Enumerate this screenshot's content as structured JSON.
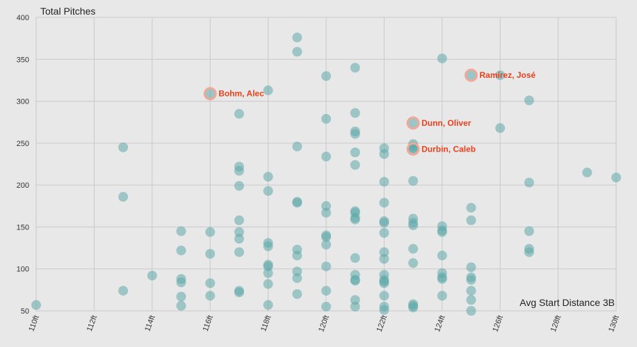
{
  "chart_data": {
    "type": "scatter",
    "ylabel": "Total Pitches",
    "xlabel": "Avg Start Distance 3B",
    "xlim": [
      110,
      130
    ],
    "ylim": [
      50,
      400
    ],
    "x_ticks": [
      110,
      112,
      114,
      116,
      118,
      120,
      122,
      124,
      126,
      128,
      130
    ],
    "x_tick_labels": [
      "110ft",
      "112ft",
      "114ft",
      "116ft",
      "118ft",
      "120ft",
      "122ft",
      "124ft",
      "126ft",
      "128ft",
      "130ft"
    ],
    "y_ticks": [
      50,
      100,
      150,
      200,
      250,
      300,
      350,
      400
    ],
    "y_tick_labels": [
      "50",
      "100",
      "150",
      "200",
      "250",
      "300",
      "350",
      "400"
    ],
    "points": [
      [
        110,
        57
      ],
      [
        113,
        245
      ],
      [
        113,
        186
      ],
      [
        113,
        74
      ],
      [
        114,
        92
      ],
      [
        115,
        145
      ],
      [
        115,
        122
      ],
      [
        115,
        88
      ],
      [
        115,
        84
      ],
      [
        115,
        67
      ],
      [
        115,
        56
      ],
      [
        116,
        144
      ],
      [
        116,
        118
      ],
      [
        116,
        83
      ],
      [
        116,
        68
      ],
      [
        117,
        285
      ],
      [
        117,
        222
      ],
      [
        117,
        217
      ],
      [
        117,
        199
      ],
      [
        117,
        158
      ],
      [
        117,
        144
      ],
      [
        117,
        136
      ],
      [
        117,
        120
      ],
      [
        117,
        74
      ],
      [
        117,
        72
      ],
      [
        118,
        313
      ],
      [
        118,
        210
      ],
      [
        118,
        193
      ],
      [
        118,
        131
      ],
      [
        118,
        127
      ],
      [
        118,
        105
      ],
      [
        118,
        103
      ],
      [
        118,
        95
      ],
      [
        118,
        82
      ],
      [
        118,
        57
      ],
      [
        119,
        376
      ],
      [
        119,
        359
      ],
      [
        119,
        246
      ],
      [
        119,
        180
      ],
      [
        119,
        179
      ],
      [
        119,
        123
      ],
      [
        119,
        116
      ],
      [
        119,
        97
      ],
      [
        119,
        89
      ],
      [
        119,
        70
      ],
      [
        120,
        330
      ],
      [
        120,
        279
      ],
      [
        120,
        234
      ],
      [
        120,
        175
      ],
      [
        120,
        167
      ],
      [
        120,
        140
      ],
      [
        120,
        138
      ],
      [
        120,
        129
      ],
      [
        120,
        103
      ],
      [
        120,
        74
      ],
      [
        120,
        55
      ],
      [
        121,
        340
      ],
      [
        121,
        286
      ],
      [
        121,
        264
      ],
      [
        121,
        261
      ],
      [
        121,
        239
      ],
      [
        121,
        224
      ],
      [
        121,
        169
      ],
      [
        121,
        167
      ],
      [
        121,
        161
      ],
      [
        121,
        159
      ],
      [
        121,
        113
      ],
      [
        121,
        93
      ],
      [
        121,
        87
      ],
      [
        121,
        86
      ],
      [
        121,
        63
      ],
      [
        121,
        55
      ],
      [
        122,
        244
      ],
      [
        122,
        237
      ],
      [
        122,
        204
      ],
      [
        122,
        179
      ],
      [
        122,
        157
      ],
      [
        122,
        155
      ],
      [
        122,
        143
      ],
      [
        122,
        120
      ],
      [
        122,
        112
      ],
      [
        122,
        93
      ],
      [
        122,
        87
      ],
      [
        122,
        85
      ],
      [
        122,
        83
      ],
      [
        122,
        68
      ],
      [
        122,
        55
      ],
      [
        122,
        51
      ],
      [
        123,
        249
      ],
      [
        123,
        246
      ],
      [
        123,
        244
      ],
      [
        123,
        205
      ],
      [
        123,
        160
      ],
      [
        123,
        155
      ],
      [
        123,
        152
      ],
      [
        123,
        124
      ],
      [
        123,
        107
      ],
      [
        123,
        58
      ],
      [
        123,
        56
      ],
      [
        123,
        54
      ],
      [
        124,
        351
      ],
      [
        124,
        151
      ],
      [
        124,
        146
      ],
      [
        124,
        144
      ],
      [
        124,
        116
      ],
      [
        124,
        95
      ],
      [
        124,
        90
      ],
      [
        124,
        88
      ],
      [
        124,
        68
      ],
      [
        125,
        173
      ],
      [
        125,
        158
      ],
      [
        125,
        102
      ],
      [
        125,
        90
      ],
      [
        125,
        87
      ],
      [
        125,
        74
      ],
      [
        125,
        63
      ],
      [
        125,
        50
      ],
      [
        126,
        331
      ],
      [
        126,
        268
      ],
      [
        127,
        301
      ],
      [
        127,
        203
      ],
      [
        127,
        145
      ],
      [
        127,
        124
      ],
      [
        127,
        120
      ],
      [
        129,
        215
      ],
      [
        130,
        209
      ]
    ],
    "highlights": [
      {
        "name": "Bohm, Alec",
        "x": 116,
        "y": 309
      },
      {
        "name": "Ramírez, José",
        "x": 125,
        "y": 331
      },
      {
        "name": "Dunn, Oliver",
        "x": 123,
        "y": 274
      },
      {
        "name": "Durbin, Caleb",
        "x": 123,
        "y": 243
      }
    ],
    "colors": {
      "point": "#5ea7a8",
      "highlight_ring": "#f0a898",
      "highlight_label": "#e8411e",
      "grid": "#c9c9c9",
      "background": "#e8e8e8"
    }
  }
}
